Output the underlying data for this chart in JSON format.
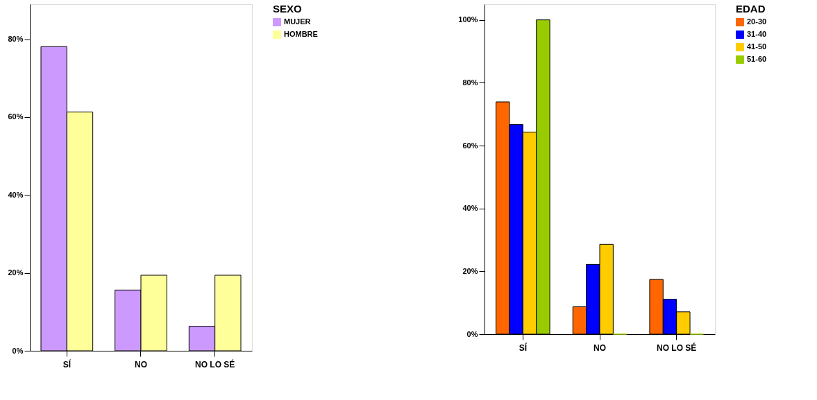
{
  "chart_data": [
    {
      "type": "bar",
      "legend_title": "SEXO",
      "legend": "top right",
      "grid": false,
      "categories": [
        "SÍ",
        "NO",
        "NO  LO  SÉ"
      ],
      "series": [
        {
          "name": "MUJER",
          "color": "#cc99ff",
          "values": [
            78.1,
            15.6,
            6.3
          ]
        },
        {
          "name": "HOMBRE",
          "color": "#ffff99",
          "values": [
            61.3,
            19.4,
            19.4
          ]
        }
      ],
      "ylim": [
        0,
        89
      ],
      "yticks": [
        {
          "value": 0,
          "label": "0%"
        },
        {
          "value": 20,
          "label": "20%"
        },
        {
          "value": 40,
          "label": "40%"
        },
        {
          "value": 60,
          "label": "60%"
        },
        {
          "value": 80,
          "label": "80%"
        }
      ]
    },
    {
      "type": "bar",
      "legend_title": "EDAD",
      "legend": "top right",
      "grid": false,
      "categories": [
        "SÍ",
        "NO",
        "NO  LO  SÉ"
      ],
      "series": [
        {
          "name": "20-30",
          "color": "#ff6600",
          "values": [
            73.9,
            8.7,
            17.4
          ]
        },
        {
          "name": "31-40",
          "color": "#0000ff",
          "values": [
            66.7,
            22.2,
            11.1
          ]
        },
        {
          "name": "41-50",
          "color": "#ffcc00",
          "values": [
            64.3,
            28.6,
            7.1
          ]
        },
        {
          "name": "51-60",
          "color": "#99cc00",
          "values": [
            100,
            0,
            0
          ]
        }
      ],
      "ylim": [
        0,
        105
      ],
      "yticks": [
        {
          "value": 0,
          "label": "0%"
        },
        {
          "value": 20,
          "label": "20%"
        },
        {
          "value": 40,
          "label": "40%"
        },
        {
          "value": 60,
          "label": "60%"
        },
        {
          "value": 80,
          "label": "80%"
        },
        {
          "value": 100,
          "label": "100%"
        }
      ]
    }
  ]
}
